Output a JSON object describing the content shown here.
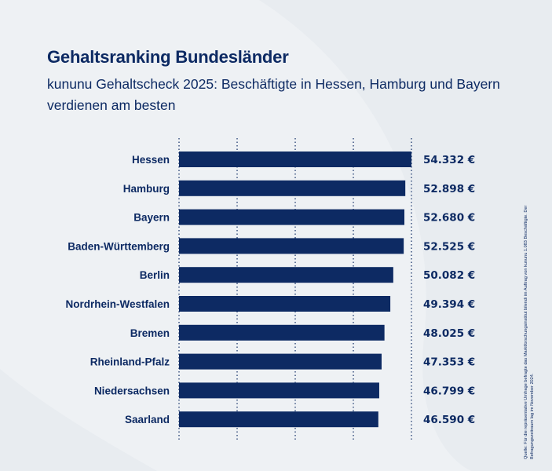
{
  "header": {
    "title": "Gehaltsranking Bundesländer",
    "subtitle": "kununu Gehaltscheck 2025: Beschäftigte in Hessen, Hamburg und Bayern verdienen am besten"
  },
  "source": "Quelle: Für die repräsentative Umfrage befragte das Marktforschungsinstitut bilendi im Auftrag von kununu 1.083 Beschäftigte. Der Befragungszeitraum lag im November 2024.",
  "colors": {
    "bar": "#0d2a63",
    "background": "#eef1f4",
    "text": "#0d2a63"
  },
  "chart_data": {
    "type": "bar",
    "orientation": "horizontal",
    "categories": [
      "Hessen",
      "Hamburg",
      "Bayern",
      "Baden-Württemberg",
      "Berlin",
      "Nordrhein-Westfalen",
      "Bremen",
      "Rheinland-Pfalz",
      "Niedersachsen",
      "Saarland"
    ],
    "values": [
      54332,
      52898,
      52680,
      52525,
      50082,
      49394,
      48025,
      47353,
      46799,
      46590
    ],
    "value_labels": [
      "54.332 €",
      "52.898 €",
      "52.680 €",
      "52.525 €",
      "50.082 €",
      "49.394 €",
      "48.025 €",
      "47.353 €",
      "46.799 €",
      "46.590 €"
    ],
    "unit": "€",
    "xlim": [
      0,
      54332
    ],
    "grid": true,
    "gridlines": 5
  }
}
